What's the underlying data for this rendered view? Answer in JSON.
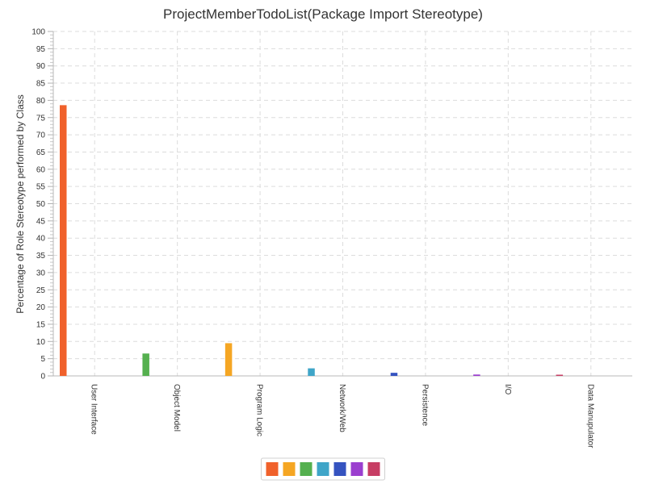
{
  "chart_data": {
    "type": "bar",
    "title": "ProjectMemberTodoList(Package Import Stereotype)",
    "ylabel": "Percentage of Role Stereotype performed by Class",
    "xlabel": "",
    "ylim": [
      0,
      100
    ],
    "y_tick_step": 5,
    "y_ticks": [
      "0",
      "5",
      "10",
      "15",
      "20",
      "25",
      "30",
      "35",
      "40",
      "45",
      "50",
      "55",
      "60",
      "65",
      "70",
      "75",
      "80",
      "85",
      "90",
      "95",
      "100"
    ],
    "grid": true,
    "legend_position": "bottom-center",
    "categories": [
      "User Interface",
      "Object Model",
      "Program Logic",
      "Network/Web",
      "Persistence",
      "I/O",
      "Data Manupulator"
    ],
    "series": [
      {
        "values": [
          78.6,
          0,
          0,
          0,
          0,
          0,
          0
        ],
        "color": "#f0612b"
      },
      {
        "values": [
          0,
          0,
          9.5,
          0,
          0,
          0,
          0
        ],
        "color": "#f5a623"
      },
      {
        "values": [
          0,
          6.5,
          0,
          0,
          0,
          0,
          0
        ],
        "color": "#55b04f"
      },
      {
        "values": [
          0,
          0,
          0,
          2.2,
          0,
          0,
          0
        ],
        "color": "#3fa5c8"
      },
      {
        "values": [
          0,
          0,
          0,
          0,
          0.9,
          0,
          0
        ],
        "color": "#3553c0"
      },
      {
        "values": [
          0,
          0,
          0,
          0,
          0,
          0.4,
          0
        ],
        "color": "#9b3fcf"
      },
      {
        "values": [
          0,
          0,
          0,
          0,
          0,
          0,
          0.2
        ],
        "color": "#c73e64"
      }
    ]
  }
}
